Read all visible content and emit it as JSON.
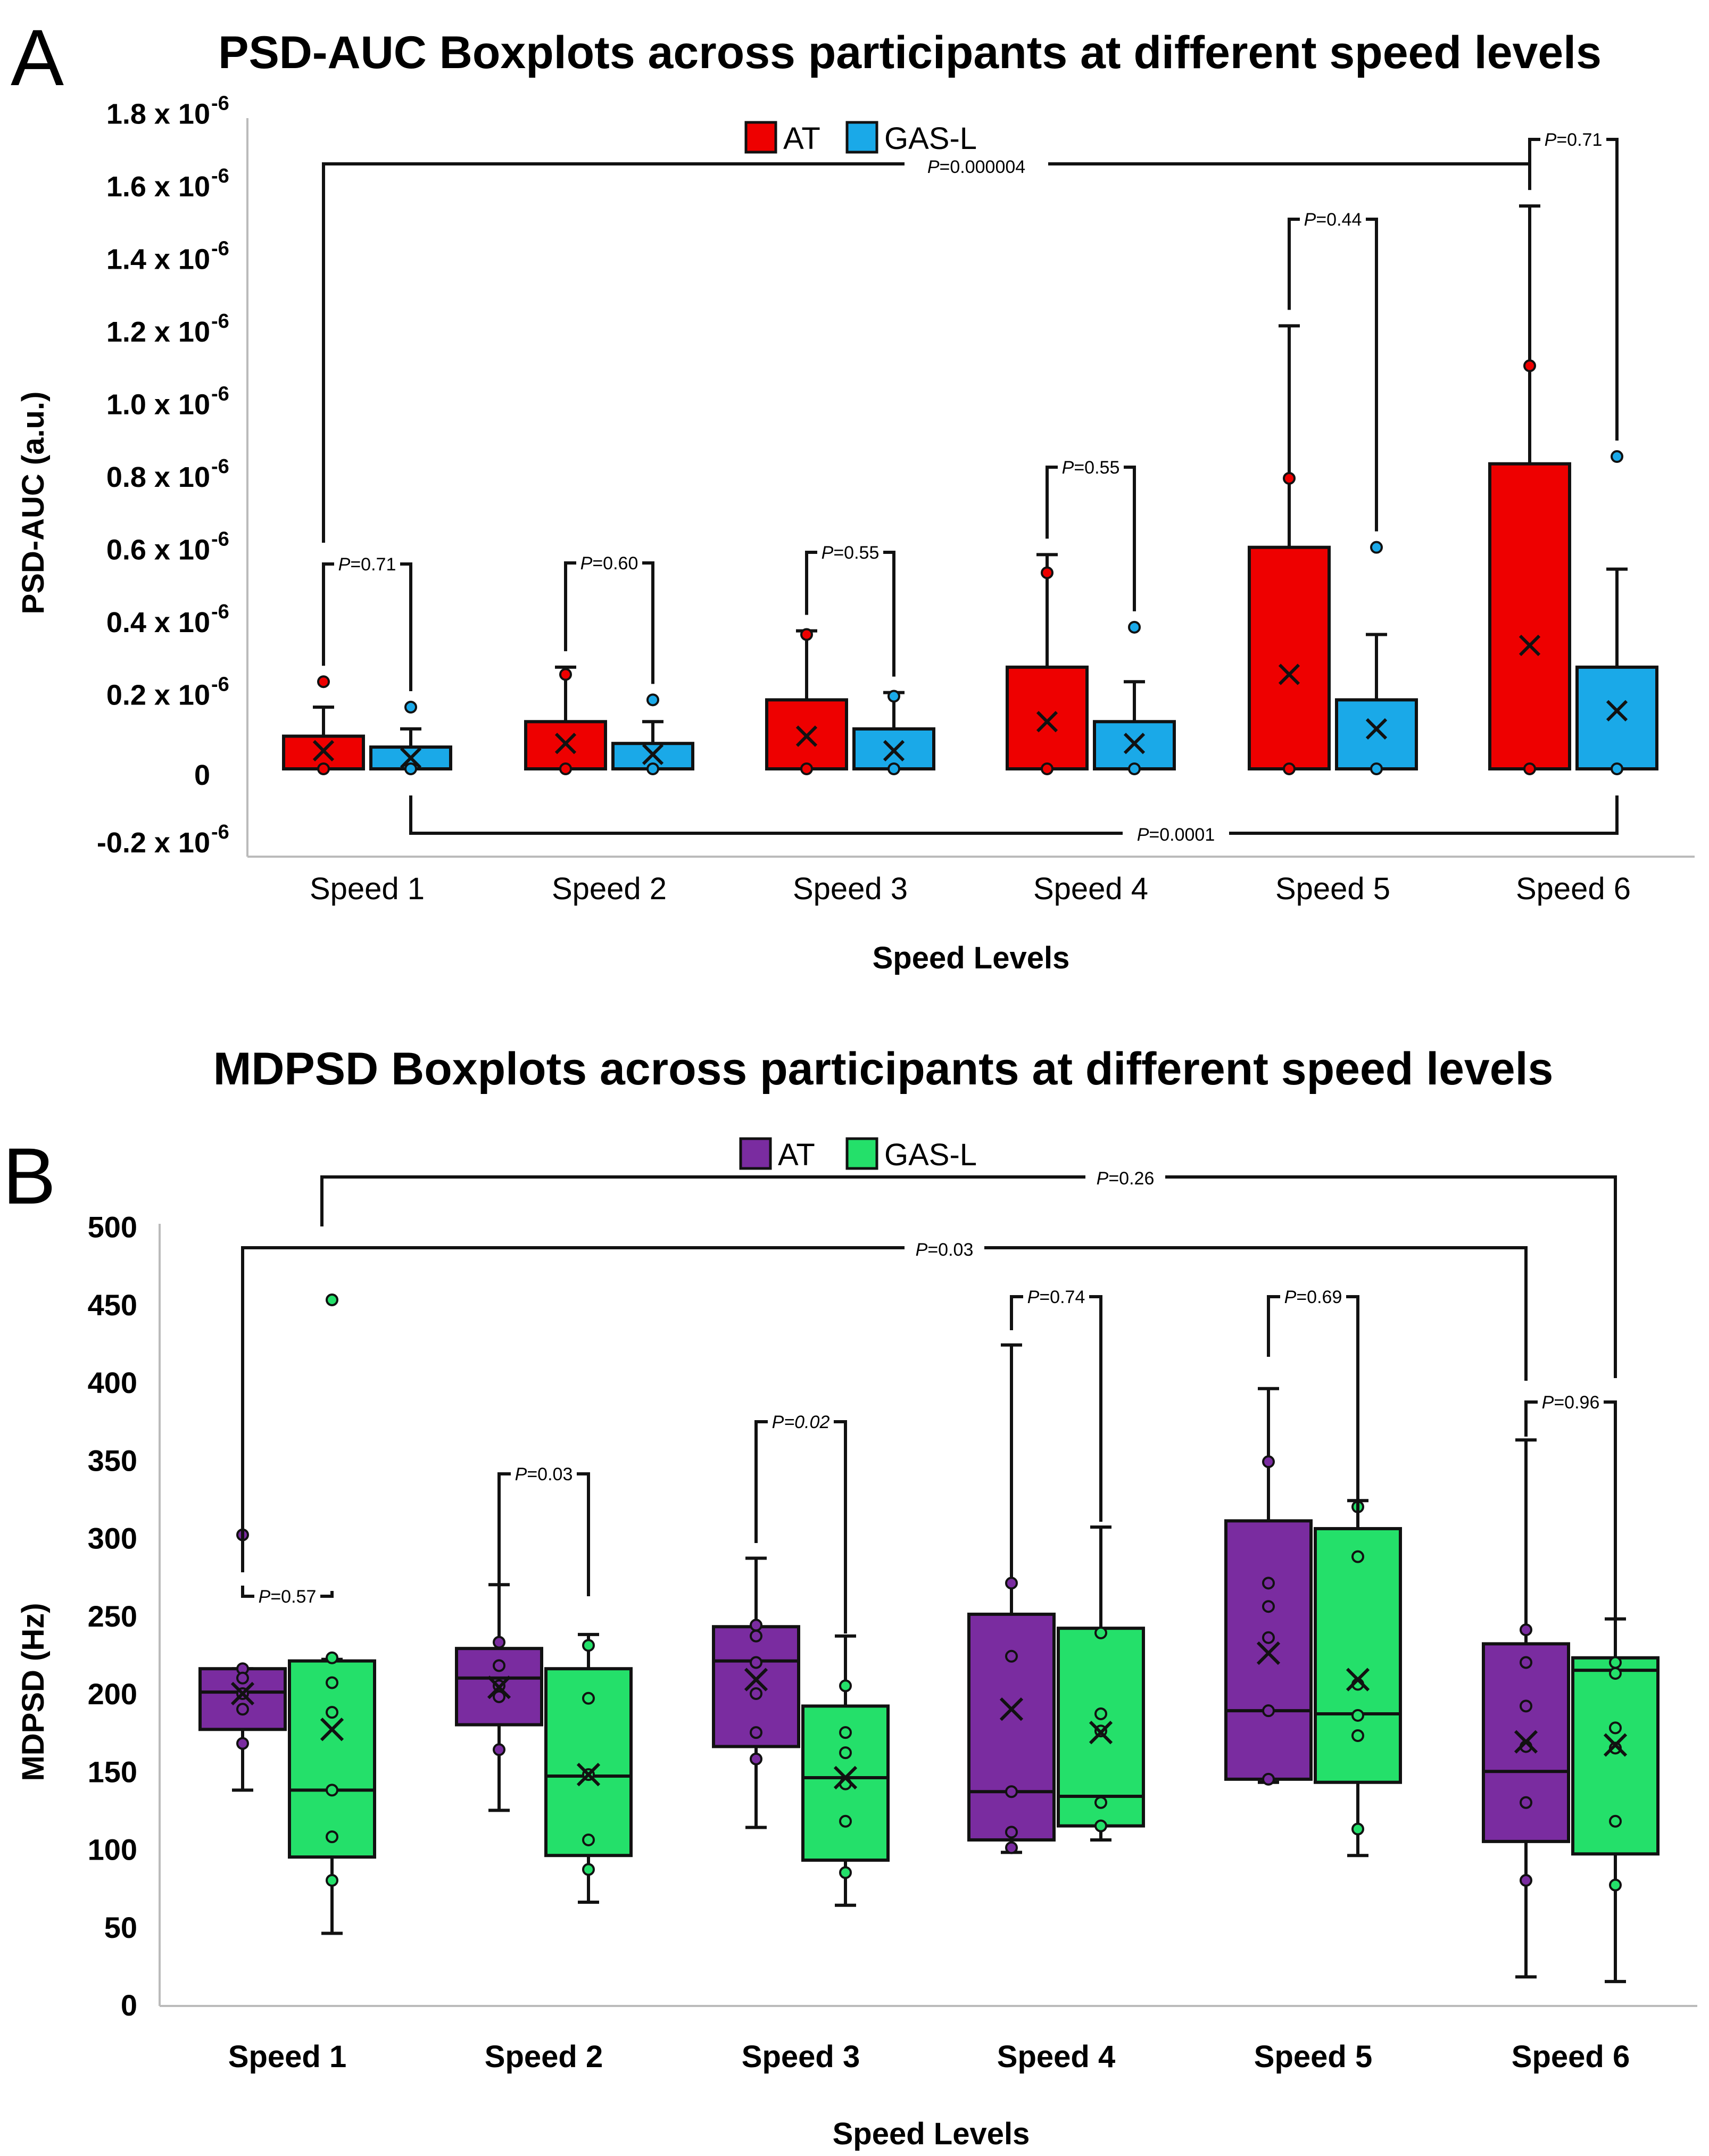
{
  "panels": [
    {
      "letter": "A",
      "title": "PSD-AUC Boxplots across participants at different speed levels",
      "xlabel": "Speed Levels",
      "ylabel": "PSD-AUC (a.u.)",
      "categories": [
        "Speed 1",
        "Speed 2",
        "Speed 3",
        "Speed 4",
        "Speed 5",
        "Speed 6"
      ],
      "ytick_labels": [
        "-0.2 x 10",
        "0",
        "0.2 x 10",
        "0.4 x 10",
        "0.6 x 10",
        "0.8 x 10",
        "1.0 x 10",
        "1.2 x 10",
        "1.4 x 10",
        "1.6 x 10",
        "1.8 x 10"
      ],
      "legend": [
        "AT",
        "GAS-L"
      ],
      "annotations": [
        "P=0.71",
        "P=0.60",
        "P=0.55",
        "P=0.55",
        "P=0.44",
        "P=0.71",
        "P=0.000004",
        "P=0.0001"
      ]
    },
    {
      "letter": "B",
      "title": "MDPSD Boxplots across participants at different speed levels",
      "xlabel": "Speed Levels",
      "ylabel": "MDPSD (Hz)",
      "categories": [
        "Speed 1",
        "Speed 2",
        "Speed 3",
        "Speed 4",
        "Speed 5",
        "Speed 6"
      ],
      "ytick_labels": [
        "0",
        "50",
        "100",
        "150",
        "200",
        "250",
        "300",
        "350",
        "400",
        "450",
        "500"
      ],
      "legend": [
        "AT",
        "GAS-L"
      ],
      "annotations": [
        "P=0.57",
        "P=0.03",
        "P=0.02",
        "P=0.74",
        "P=0.69",
        "P=0.96",
        "P=0.03",
        "P=0.26"
      ]
    }
  ],
  "exponent_label": "-6",
  "colors": {
    "A_AT": "#ee0000",
    "A_GAS": "#1aa9e8",
    "B_AT": "#7a2ca0",
    "B_GAS": "#24e06a",
    "line": "#111111",
    "axis": "#bbbbbb"
  },
  "chart_data": [
    {
      "type": "box",
      "title": "PSD-AUC Boxplots across participants at different speed levels",
      "xlabel": "Speed Levels",
      "ylabel": "PSD-AUC (a.u.)",
      "y_units": "x 10^-6 a.u.",
      "ylim": [
        -0.2,
        1.8
      ],
      "categories": [
        "Speed 1",
        "Speed 2",
        "Speed 3",
        "Speed 4",
        "Speed 5",
        "Speed 6"
      ],
      "series": [
        {
          "name": "AT",
          "boxes": [
            {
              "min": 0.0,
              "q1": 0.0,
              "median": 0.0,
              "q3": 0.09,
              "max": 0.17,
              "mean": 0.05,
              "points": [
                0.0,
                0.24
              ]
            },
            {
              "min": 0.0,
              "q1": 0.0,
              "median": 0.0,
              "q3": 0.13,
              "max": 0.28,
              "mean": 0.07,
              "points": [
                0.0,
                0.26
              ]
            },
            {
              "min": 0.0,
              "q1": 0.0,
              "median": 0.0,
              "q3": 0.19,
              "max": 0.38,
              "mean": 0.09,
              "points": [
                0.0,
                0.37
              ]
            },
            {
              "min": 0.0,
              "q1": 0.0,
              "median": 0.0,
              "q3": 0.28,
              "max": 0.59,
              "mean": 0.13,
              "points": [
                0.0,
                0.54
              ]
            },
            {
              "min": 0.0,
              "q1": 0.0,
              "median": 0.0,
              "q3": 0.61,
              "max": 1.22,
              "mean": 0.26,
              "points": [
                0.0,
                0.8
              ]
            },
            {
              "min": 0.0,
              "q1": 0.0,
              "median": 0.0,
              "q3": 0.84,
              "max": 1.55,
              "mean": 0.34,
              "points": [
                0.0,
                1.11
              ]
            }
          ]
        },
        {
          "name": "GAS-L",
          "boxes": [
            {
              "min": 0.0,
              "q1": 0.0,
              "median": 0.0,
              "q3": 0.06,
              "max": 0.11,
              "mean": 0.03,
              "points": [
                0.0,
                0.17
              ]
            },
            {
              "min": 0.0,
              "q1": 0.0,
              "median": 0.0,
              "q3": 0.07,
              "max": 0.13,
              "mean": 0.04,
              "points": [
                0.0,
                0.19
              ]
            },
            {
              "min": 0.0,
              "q1": 0.0,
              "median": 0.0,
              "q3": 0.11,
              "max": 0.21,
              "mean": 0.05,
              "points": [
                0.0,
                0.2
              ]
            },
            {
              "min": 0.0,
              "q1": 0.0,
              "median": 0.0,
              "q3": 0.13,
              "max": 0.24,
              "mean": 0.07,
              "points": [
                0.0,
                0.39
              ]
            },
            {
              "min": 0.0,
              "q1": 0.0,
              "median": 0.0,
              "q3": 0.19,
              "max": 0.37,
              "mean": 0.11,
              "points": [
                0.0,
                0.61
              ]
            },
            {
              "min": 0.0,
              "q1": 0.0,
              "median": 0.0,
              "q3": 0.28,
              "max": 0.55,
              "mean": 0.16,
              "points": [
                0.0,
                0.86
              ]
            }
          ]
        }
      ],
      "comparisons": [
        {
          "label": "P=0.71",
          "between": [
            "Speed 1 AT",
            "Speed 1 GAS-L"
          ]
        },
        {
          "label": "P=0.60",
          "between": [
            "Speed 2 AT",
            "Speed 2 GAS-L"
          ]
        },
        {
          "label": "P=0.55",
          "between": [
            "Speed 3 AT",
            "Speed 3 GAS-L"
          ]
        },
        {
          "label": "P=0.55",
          "between": [
            "Speed 4 AT",
            "Speed 4 GAS-L"
          ]
        },
        {
          "label": "P=0.44",
          "between": [
            "Speed 5 AT",
            "Speed 5 GAS-L"
          ]
        },
        {
          "label": "P=0.71",
          "between": [
            "Speed 6 AT",
            "Speed 6 GAS-L"
          ]
        },
        {
          "label": "P=0.000004",
          "between": [
            "Speed 1 AT",
            "Speed 6 AT"
          ]
        },
        {
          "label": "P=0.0001",
          "between": [
            "Speed 1 GAS-L",
            "Speed 6 GAS-L"
          ]
        }
      ]
    },
    {
      "type": "box",
      "title": "MDPSD Boxplots across participants at different speed levels",
      "xlabel": "Speed Levels",
      "ylabel": "MDPSD (Hz)",
      "ylim": [
        0,
        500
      ],
      "categories": [
        "Speed 1",
        "Speed 2",
        "Speed 3",
        "Speed 4",
        "Speed 5",
        "Speed 6"
      ],
      "series": [
        {
          "name": "AT",
          "boxes": [
            {
              "min": 138,
              "q1": 177,
              "median": 201,
              "q3": 216,
              "max": 216,
              "mean": 200,
              "points": [
                302,
                216,
                210,
                200,
                190,
                168
              ]
            },
            {
              "min": 125,
              "q1": 180,
              "median": 210,
              "q3": 229,
              "max": 270,
              "mean": 204,
              "points": [
                233,
                218,
                205,
                198,
                164
              ]
            },
            {
              "min": 114,
              "q1": 166,
              "median": 221,
              "q3": 243,
              "max": 287,
              "mean": 209,
              "points": [
                244,
                237,
                220,
                200,
                175,
                158
              ]
            },
            {
              "min": 98,
              "q1": 106,
              "median": 137,
              "q3": 251,
              "max": 424,
              "mean": 190,
              "points": [
                271,
                224,
                137,
                111,
                101
              ]
            },
            {
              "min": 143,
              "q1": 145,
              "median": 189,
              "q3": 311,
              "max": 396,
              "mean": 226,
              "points": [
                349,
                271,
                256,
                236,
                189,
                145
              ]
            },
            {
              "min": 18,
              "q1": 105,
              "median": 150,
              "q3": 232,
              "max": 363,
              "mean": 169,
              "points": [
                241,
                220,
                192,
                166,
                130,
                80
              ]
            }
          ]
        },
        {
          "name": "GAS-L",
          "boxes": [
            {
              "min": 46,
              "q1": 95,
              "median": 138,
              "q3": 221,
              "max": 222,
              "mean": 177,
              "points": [
                453,
                223,
                207,
                188,
                138,
                108,
                80
              ]
            },
            {
              "min": 66,
              "q1": 96,
              "median": 147,
              "q3": 216,
              "max": 238,
              "mean": 148,
              "points": [
                231,
                197,
                148,
                106,
                87
              ]
            },
            {
              "min": 64,
              "q1": 93,
              "median": 146,
              "q3": 192,
              "max": 237,
              "mean": 146,
              "points": [
                205,
                175,
                162,
                142,
                118,
                85
              ]
            },
            {
              "min": 106,
              "q1": 115,
              "median": 134,
              "q3": 242,
              "max": 307,
              "mean": 175,
              "points": [
                239,
                187,
                176,
                130,
                115
              ]
            },
            {
              "min": 96,
              "q1": 143,
              "median": 187,
              "q3": 306,
              "max": 324,
              "mean": 209,
              "points": [
                320,
                288,
                206,
                186,
                173,
                113
              ]
            },
            {
              "min": 15,
              "q1": 97,
              "median": 215,
              "q3": 223,
              "max": 248,
              "mean": 167,
              "points": [
                220,
                213,
                178,
                165,
                118,
                77
              ]
            }
          ]
        }
      ],
      "comparisons": [
        {
          "label": "P=0.57",
          "between": [
            "Speed 1 AT",
            "Speed 1 GAS-L"
          ]
        },
        {
          "label": "P=0.03",
          "between": [
            "Speed 2 AT",
            "Speed 2 GAS-L"
          ]
        },
        {
          "label": "P=0.02",
          "between": [
            "Speed 3 AT",
            "Speed 3 GAS-L"
          ]
        },
        {
          "label": "P=0.74",
          "between": [
            "Speed 4 AT",
            "Speed 4 GAS-L"
          ]
        },
        {
          "label": "P=0.69",
          "between": [
            "Speed 5 AT",
            "Speed 5 GAS-L"
          ]
        },
        {
          "label": "P=0.96",
          "between": [
            "Speed 6 AT",
            "Speed 6 GAS-L"
          ]
        },
        {
          "label": "P=0.03",
          "between": [
            "Speed 1 AT",
            "Speed 6 AT"
          ]
        },
        {
          "label": "P=0.26",
          "between": [
            "Speed 1 GAS-L",
            "Speed 6 GAS-L"
          ]
        }
      ]
    }
  ]
}
